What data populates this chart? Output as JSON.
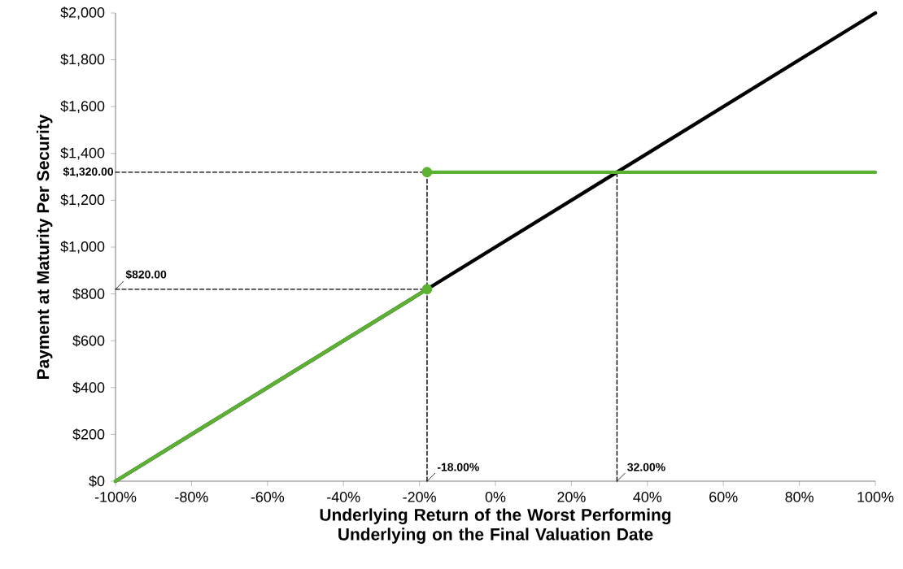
{
  "chart_data": {
    "type": "line",
    "xlabel": "Underlying Return of the Worst Performing Underlying on the Final Valuation Date",
    "ylabel": "Payment at Maturity Per Security",
    "xlim": [
      -100,
      100
    ],
    "ylim": [
      0,
      2000
    ],
    "xticks": [
      {
        "value": -100,
        "label": "-100%"
      },
      {
        "value": -80,
        "label": "-80%"
      },
      {
        "value": -60,
        "label": "-60%"
      },
      {
        "value": -40,
        "label": "-40%"
      },
      {
        "value": -20,
        "label": "-20%"
      },
      {
        "value": 0,
        "label": "0%"
      },
      {
        "value": 20,
        "label": "20%"
      },
      {
        "value": 40,
        "label": "40%"
      },
      {
        "value": 60,
        "label": "60%"
      },
      {
        "value": 80,
        "label": "80%"
      },
      {
        "value": 100,
        "label": "100%"
      }
    ],
    "yticks": [
      {
        "value": 0,
        "label": "$0"
      },
      {
        "value": 200,
        "label": "$200"
      },
      {
        "value": 400,
        "label": "$400"
      },
      {
        "value": 600,
        "label": "$600"
      },
      {
        "value": 800,
        "label": "$800"
      },
      {
        "value": 1000,
        "label": "$1,000"
      },
      {
        "value": 1200,
        "label": "$1,200"
      },
      {
        "value": 1400,
        "label": "$1,400"
      },
      {
        "value": 1600,
        "label": "$1,600"
      },
      {
        "value": 1800,
        "label": "$1,800"
      },
      {
        "value": 2000,
        "label": "$2,000"
      }
    ],
    "grid": false,
    "series": [
      {
        "line_style": "dashed",
        "color": "#000000",
        "x": [
          -100,
          -18
        ],
        "values": [
          820,
          820
        ]
      },
      {
        "line_style": "dashed",
        "color": "#000000",
        "x": [
          -100,
          -18
        ],
        "values": [
          1320,
          1320
        ]
      },
      {
        "line_style": "dashed",
        "color": "#000000",
        "x": [
          -18,
          -18
        ],
        "values": [
          0,
          1320
        ]
      },
      {
        "line_style": "dashed",
        "color": "#000000",
        "x": [
          32,
          32
        ],
        "values": [
          0,
          1320
        ]
      },
      {
        "line_style": "solid",
        "color": "#000000",
        "x": [
          -100,
          100
        ],
        "values": [
          0,
          2000
        ]
      },
      {
        "line_style": "solid",
        "color": "#5bb131",
        "x": [
          -100,
          -18
        ],
        "values": [
          0,
          820
        ]
      },
      {
        "line_style": "solid",
        "color": "#5bb131",
        "x": [
          -18,
          100
        ],
        "values": [
          1320,
          1320
        ]
      },
      {
        "type": "scatter",
        "marker": "circle",
        "color": "#5bb131",
        "x": [
          -18,
          -18
        ],
        "values": [
          820,
          1320
        ]
      }
    ],
    "annotations": [
      {
        "text": "$1,320.00",
        "x": -100,
        "y": 1320
      },
      {
        "text": "$820.00",
        "x": -100,
        "y": 820
      },
      {
        "text": "-18.00%",
        "x": -18,
        "y": 0
      },
      {
        "text": "32.00%",
        "x": 32,
        "y": 0
      }
    ]
  }
}
